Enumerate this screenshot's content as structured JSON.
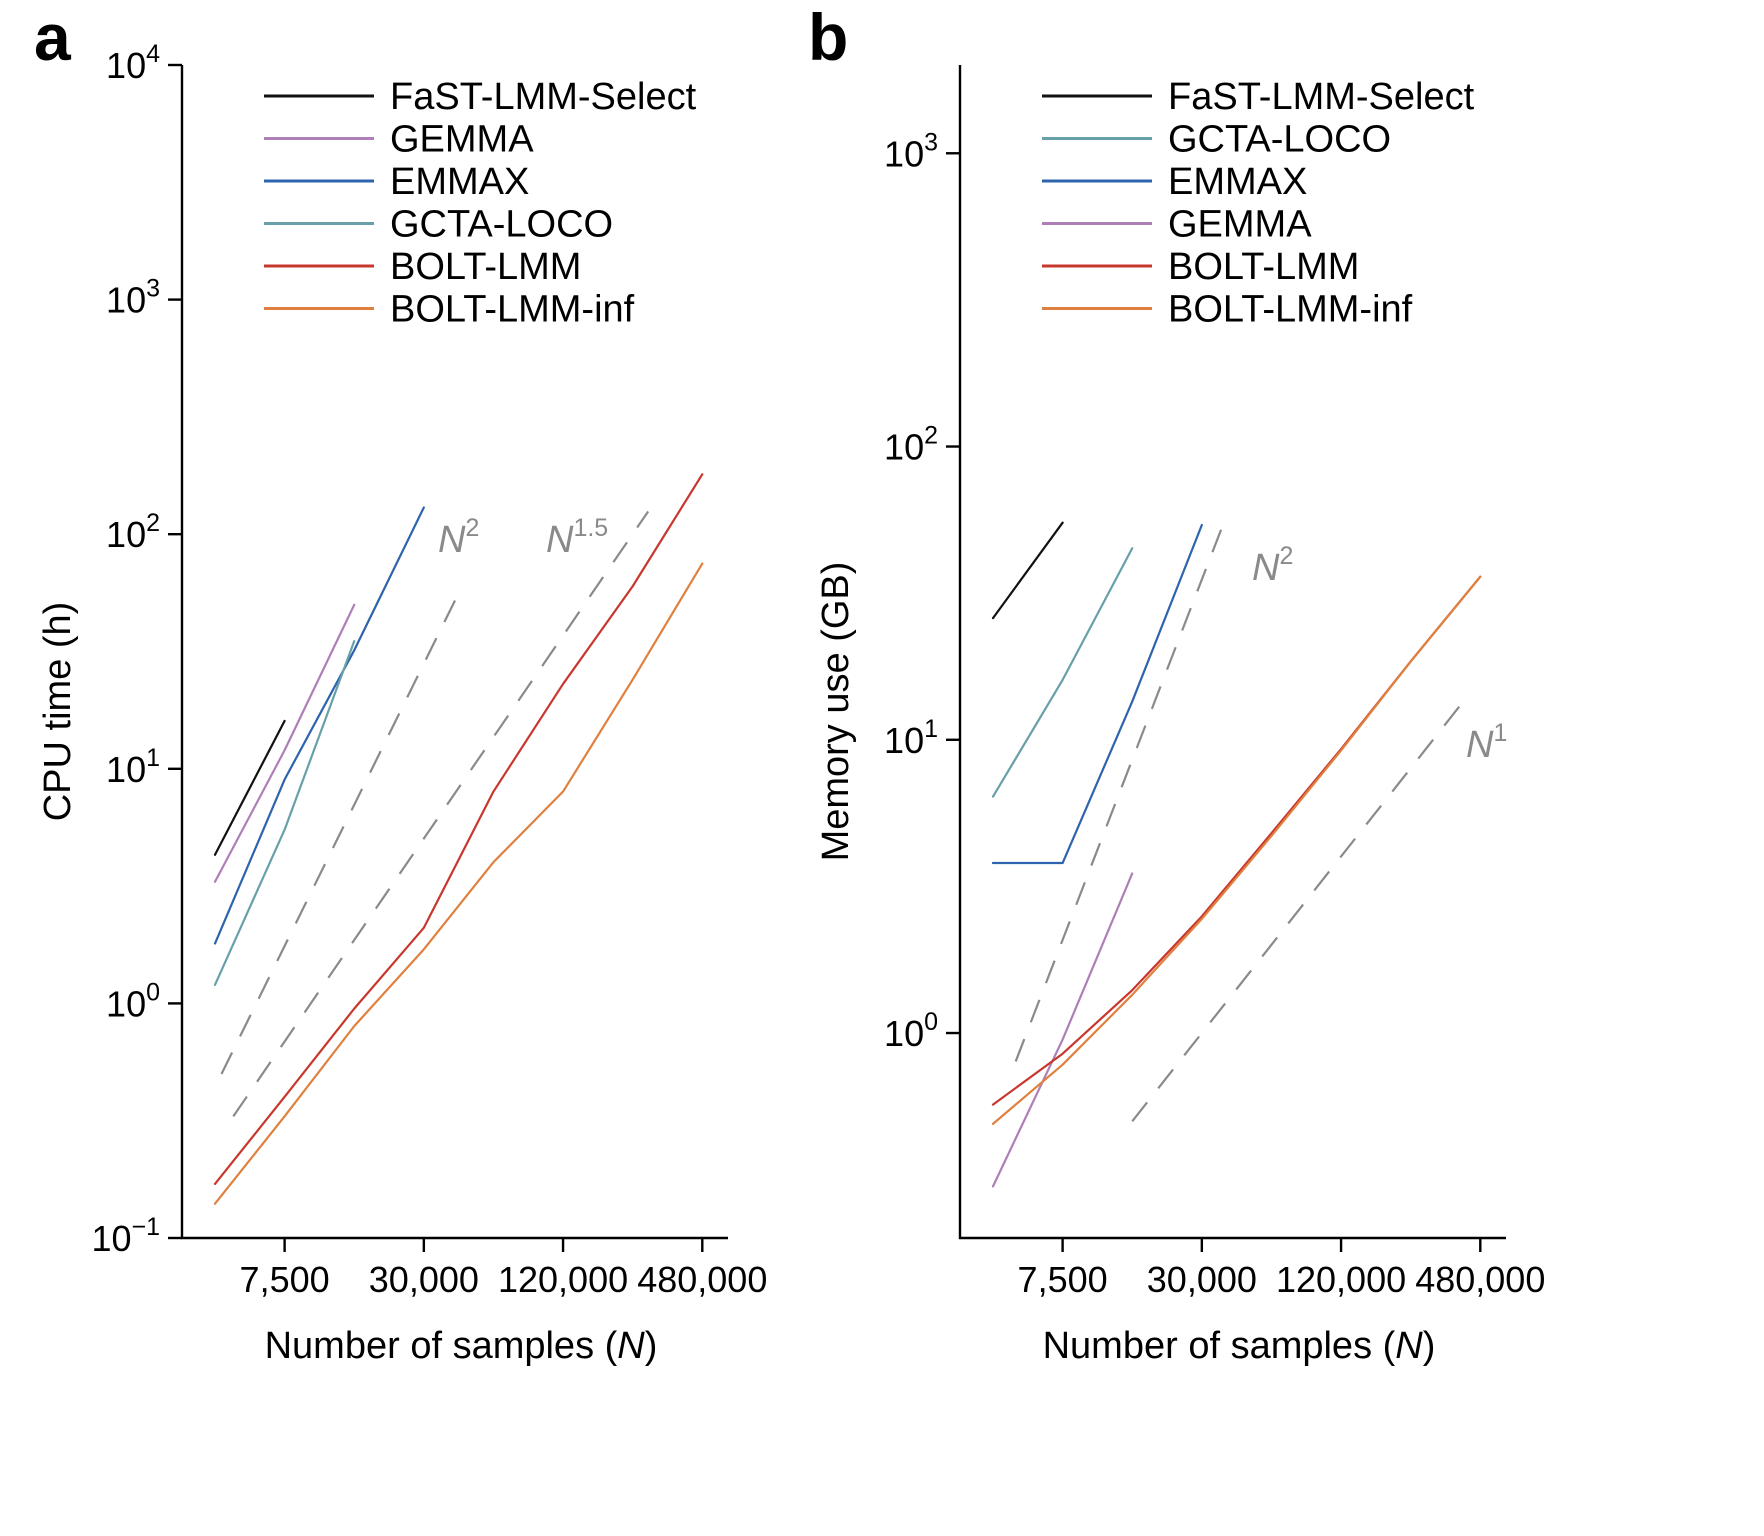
{
  "colors": {
    "FaST-LMM-Select": "#111111",
    "GEMMA": "#ad7fb6",
    "EMMAX": "#2e63ad",
    "GCTA-LOCO": "#67a0a8",
    "BOLT-LMM": "#c8372d",
    "BOLT-LMM-inf": "#e0803f",
    "reference": "#8a8a8a"
  },
  "chart_data": [
    {
      "panel": "a",
      "type": "line",
      "xscale": "log",
      "yscale": "log",
      "xlim": [
        2700,
        620000
      ],
      "ylim": [
        0.1,
        10000
      ],
      "xticks": [
        7500,
        30000,
        120000,
        480000
      ],
      "xtick_labels": [
        "7,500",
        "30,000",
        "120,000",
        "480,000"
      ],
      "yticks": [
        0.1,
        1,
        10,
        100,
        1000,
        10000
      ],
      "ytick_base": [
        "10",
        "10",
        "10",
        "10",
        "10",
        "10"
      ],
      "ytick_exp": [
        "−1",
        "0",
        "1",
        "2",
        "3",
        "4"
      ],
      "xlabel": "Number of samples (",
      "xlabel_var": "N",
      "xlabel_end": ")",
      "ylabel": "CPU time (h)",
      "legend": [
        "FaST-LMM-Select",
        "GEMMA",
        "EMMAX",
        "GCTA-LOCO",
        "BOLT-LMM",
        "BOLT-LMM-inf"
      ],
      "legend_position": "top-center",
      "series": [
        {
          "name": "FaST-LMM-Select",
          "x": [
            3750,
            7500
          ],
          "y": [
            4.3,
            16
          ]
        },
        {
          "name": "GEMMA",
          "x": [
            3750,
            7500,
            15000
          ],
          "y": [
            3.3,
            12,
            50
          ]
        },
        {
          "name": "EMMAX",
          "x": [
            3750,
            7500,
            15000,
            30000
          ],
          "y": [
            1.8,
            9,
            32,
            130
          ]
        },
        {
          "name": "GCTA-LOCO",
          "x": [
            3750,
            7500,
            15000
          ],
          "y": [
            1.2,
            5.5,
            35
          ]
        },
        {
          "name": "BOLT-LMM",
          "x": [
            3750,
            7500,
            15000,
            30000,
            60000,
            120000,
            240000,
            480000
          ],
          "y": [
            0.17,
            0.4,
            0.95,
            2.1,
            8,
            23,
            60,
            180
          ]
        },
        {
          "name": "BOLT-LMM-inf",
          "x": [
            3750,
            7500,
            15000,
            30000,
            60000,
            120000,
            240000,
            480000
          ],
          "y": [
            0.14,
            0.33,
            0.8,
            1.7,
            4,
            8,
            24,
            75
          ]
        }
      ],
      "reference_lines": [
        {
          "label": "N",
          "exponent": "2",
          "x": [
            4000,
            42000
          ],
          "y": [
            0.5,
            55
          ]
        },
        {
          "label": "N",
          "exponent": "1.5",
          "x": [
            4500,
            280000
          ],
          "y": [
            0.33,
            125
          ]
        }
      ]
    },
    {
      "panel": "b",
      "type": "line",
      "xscale": "log",
      "yscale": "log",
      "xlim": [
        2700,
        620000
      ],
      "ylim": [
        0.2,
        2000
      ],
      "xticks": [
        7500,
        30000,
        120000,
        480000
      ],
      "xtick_labels": [
        "7,500",
        "30,000",
        "120,000",
        "480,000"
      ],
      "yticks": [
        1,
        10,
        100,
        1000
      ],
      "ytick_base": [
        "10",
        "10",
        "10",
        "10"
      ],
      "ytick_exp": [
        "0",
        "1",
        "2",
        "3"
      ],
      "xlabel": "Number of samples (",
      "xlabel_var": "N",
      "xlabel_end": ")",
      "ylabel": "Memory use (GB)",
      "legend": [
        "FaST-LMM-Select",
        "GCTA-LOCO",
        "EMMAX",
        "GEMMA",
        "BOLT-LMM",
        "BOLT-LMM-inf"
      ],
      "legend_position": "top-center",
      "series": [
        {
          "name": "FaST-LMM-Select",
          "x": [
            3750,
            7500
          ],
          "y": [
            26,
            55
          ]
        },
        {
          "name": "GCTA-LOCO",
          "x": [
            3750,
            7500,
            15000
          ],
          "y": [
            6.4,
            16,
            45
          ]
        },
        {
          "name": "EMMAX",
          "x": [
            3750,
            7500,
            15000,
            30000
          ],
          "y": [
            3.8,
            3.8,
            13.5,
            54
          ]
        },
        {
          "name": "GEMMA",
          "x": [
            3750,
            7500,
            15000
          ],
          "y": [
            0.3,
            0.95,
            3.5
          ]
        },
        {
          "name": "BOLT-LMM",
          "x": [
            3750,
            7500,
            15000,
            30000,
            60000,
            120000,
            240000,
            480000
          ],
          "y": [
            0.57,
            0.85,
            1.4,
            2.5,
            4.8,
            9.3,
            18.5,
            36
          ]
        },
        {
          "name": "BOLT-LMM-inf",
          "x": [
            3750,
            7500,
            15000,
            30000,
            60000,
            120000,
            240000,
            480000
          ],
          "y": [
            0.49,
            0.78,
            1.35,
            2.45,
            4.7,
            9.2,
            18.5,
            36
          ]
        }
      ],
      "reference_lines": [
        {
          "label": "N",
          "exponent": "2",
          "x": [
            4700,
            37000
          ],
          "y": [
            0.8,
            54
          ]
        },
        {
          "label": "N",
          "exponent": "1",
          "x": [
            15000,
            420000
          ],
          "y": [
            0.5,
            14
          ]
        }
      ]
    }
  ]
}
